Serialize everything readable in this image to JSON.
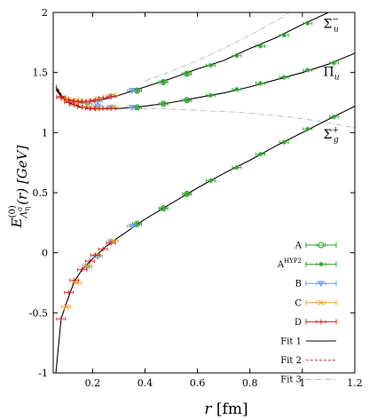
{
  "chart_data": {
    "type": "scatter",
    "xlabel_main": "r",
    "xlabel_unit": " [fm]",
    "xlim": [
      0.05,
      1.2
    ],
    "ylim": [
      -1,
      2
    ],
    "xticks": [
      {
        "v": 0.2,
        "t": "0.2"
      },
      {
        "v": 0.4,
        "t": "0.4"
      },
      {
        "v": 0.6,
        "t": "0.6"
      },
      {
        "v": 0.8,
        "t": "0.8"
      },
      {
        "v": 1.0,
        "t": "1"
      },
      {
        "v": 1.2,
        "t": "1.2"
      }
    ],
    "yticks": [
      {
        "v": -1,
        "t": "-1"
      },
      {
        "v": -0.5,
        "t": "-0.5"
      },
      {
        "v": 0,
        "t": "0"
      },
      {
        "v": 0.5,
        "t": "0.5"
      },
      {
        "v": 1,
        "t": "1"
      },
      {
        "v": 1.5,
        "t": "1.5"
      },
      {
        "v": 2,
        "t": "2"
      }
    ],
    "ylabel": {
      "E": "E",
      "sup": "(0)",
      "sub": "Λ",
      "subsup": "σ",
      "subsub": "η",
      "arg": "(r) [GeV]"
    },
    "series_labels": [
      {
        "main": "Σ",
        "sub": "u",
        "sup": "−",
        "x": 1.08,
        "y": 1.87
      },
      {
        "main": "Π",
        "sub": "u",
        "sup": "",
        "x": 1.08,
        "y": 1.47
      },
      {
        "main": "Σ",
        "sub": "g",
        "sup": "+",
        "x": 1.08,
        "y": 0.95
      }
    ],
    "legend": [
      {
        "label": "A",
        "sup": "",
        "kind": "circle",
        "color": "#2ca02c"
      },
      {
        "label": "A",
        "sup": "HYP2",
        "kind": "asterisk",
        "color": "#2ca02c"
      },
      {
        "label": "B",
        "sup": "",
        "kind": "triangle",
        "color": "#6b9bd8"
      },
      {
        "label": "C",
        "sup": "",
        "kind": "cross",
        "color": "#f0a020"
      },
      {
        "label": "D",
        "sup": "",
        "kind": "plus",
        "color": "#d62020"
      },
      {
        "label": "Fit 1",
        "sup": "",
        "kind": "solid",
        "color": "#000000"
      },
      {
        "label": "Fit 2",
        "sup": "",
        "kind": "dashed",
        "color": "#c04040"
      },
      {
        "label": "Fit 3",
        "sup": "",
        "kind": "dashdot",
        "color": "#b0b0b0"
      }
    ],
    "series": [
      {
        "name": "A",
        "kind": "circle",
        "color": "#2ca02c",
        "points": [
          [
            0.37,
            0.24
          ],
          [
            0.47,
            0.37
          ],
          [
            0.56,
            0.49
          ],
          [
            0.37,
            1.21
          ],
          [
            0.47,
            1.24
          ],
          [
            0.56,
            1.27
          ],
          [
            0.37,
            1.35
          ],
          [
            0.47,
            1.42
          ],
          [
            0.56,
            1.49
          ]
        ]
      },
      {
        "name": "AHYP2",
        "kind": "asterisk",
        "color": "#2ca02c",
        "points": [
          [
            0.37,
            0.24
          ],
          [
            0.47,
            0.37
          ],
          [
            0.56,
            0.49
          ],
          [
            0.65,
            0.6
          ],
          [
            0.75,
            0.71
          ],
          [
            0.84,
            0.82
          ],
          [
            0.93,
            0.92
          ],
          [
            1.02,
            1.03
          ],
          [
            1.12,
            1.13
          ],
          [
            0.37,
            1.21
          ],
          [
            0.47,
            1.24
          ],
          [
            0.56,
            1.27
          ],
          [
            0.65,
            1.31
          ],
          [
            0.75,
            1.36
          ],
          [
            0.84,
            1.41
          ],
          [
            0.93,
            1.46
          ],
          [
            1.02,
            1.52
          ],
          [
            1.12,
            1.58
          ],
          [
            0.37,
            1.35
          ],
          [
            0.47,
            1.42
          ],
          [
            0.56,
            1.49
          ],
          [
            0.65,
            1.56
          ],
          [
            0.75,
            1.64
          ],
          [
            0.84,
            1.72
          ],
          [
            0.93,
            1.81
          ],
          [
            1.02,
            1.91
          ]
        ]
      },
      {
        "name": "B",
        "kind": "triangle",
        "color": "#6b9bd8",
        "points": [
          [
            0.18,
            -0.12
          ],
          [
            0.22,
            -0.03
          ],
          [
            0.27,
            0.09
          ],
          [
            0.35,
            0.22
          ],
          [
            0.18,
            1.24
          ],
          [
            0.22,
            1.22
          ],
          [
            0.27,
            1.21
          ],
          [
            0.35,
            1.21
          ],
          [
            0.18,
            1.24
          ],
          [
            0.22,
            1.26
          ],
          [
            0.27,
            1.3
          ],
          [
            0.35,
            1.35
          ]
        ]
      },
      {
        "name": "C",
        "kind": "cross",
        "color": "#f0a020",
        "points": [
          [
            0.1,
            -0.45
          ],
          [
            0.14,
            -0.25
          ],
          [
            0.18,
            -0.11
          ],
          [
            0.22,
            -0.02
          ],
          [
            0.28,
            0.1
          ],
          [
            0.1,
            1.27
          ],
          [
            0.14,
            1.24
          ],
          [
            0.18,
            1.22
          ],
          [
            0.22,
            1.2
          ],
          [
            0.28,
            1.21
          ],
          [
            0.1,
            1.28
          ],
          [
            0.14,
            1.27
          ],
          [
            0.18,
            1.26
          ],
          [
            0.22,
            1.28
          ],
          [
            0.28,
            1.31
          ]
        ]
      },
      {
        "name": "D",
        "kind": "plus",
        "color": "#d62020",
        "points": [
          [
            0.08,
            -0.55
          ],
          [
            0.11,
            -0.33
          ],
          [
            0.13,
            -0.23
          ],
          [
            0.16,
            -0.14
          ],
          [
            0.19,
            -0.07
          ],
          [
            0.21,
            -0.02
          ],
          [
            0.24,
            0.03
          ],
          [
            0.27,
            0.08
          ],
          [
            0.08,
            1.29
          ],
          [
            0.11,
            1.25
          ],
          [
            0.13,
            1.23
          ],
          [
            0.16,
            1.21
          ],
          [
            0.19,
            1.2
          ],
          [
            0.21,
            1.2
          ],
          [
            0.24,
            1.2
          ],
          [
            0.27,
            1.2
          ],
          [
            0.08,
            1.3
          ],
          [
            0.11,
            1.27
          ],
          [
            0.13,
            1.26
          ],
          [
            0.16,
            1.26
          ],
          [
            0.19,
            1.26
          ],
          [
            0.21,
            1.27
          ],
          [
            0.24,
            1.29
          ],
          [
            0.27,
            1.3
          ]
        ]
      }
    ],
    "fits": {
      "fit1": {
        "color": "#000000",
        "curves": [
          [
            [
              0.06,
              -1.0
            ],
            [
              0.08,
              -0.55
            ],
            [
              0.1,
              -0.42
            ],
            [
              0.13,
              -0.24
            ],
            [
              0.16,
              -0.14
            ],
            [
              0.2,
              -0.05
            ],
            [
              0.25,
              0.05
            ],
            [
              0.3,
              0.13
            ],
            [
              0.4,
              0.28
            ],
            [
              0.5,
              0.41
            ],
            [
              0.6,
              0.54
            ],
            [
              0.7,
              0.66
            ],
            [
              0.8,
              0.77
            ],
            [
              0.9,
              0.89
            ],
            [
              1.0,
              1.0
            ],
            [
              1.1,
              1.11
            ],
            [
              1.2,
              1.22
            ]
          ],
          [
            [
              0.06,
              1.36
            ],
            [
              0.08,
              1.3
            ],
            [
              0.1,
              1.26
            ],
            [
              0.13,
              1.23
            ],
            [
              0.16,
              1.21
            ],
            [
              0.2,
              1.2
            ],
            [
              0.25,
              1.2
            ],
            [
              0.3,
              1.2
            ],
            [
              0.4,
              1.22
            ],
            [
              0.5,
              1.25
            ],
            [
              0.6,
              1.29
            ],
            [
              0.7,
              1.33
            ],
            [
              0.8,
              1.38
            ],
            [
              0.9,
              1.44
            ],
            [
              1.0,
              1.5
            ],
            [
              1.1,
              1.57
            ],
            [
              1.2,
              1.66
            ]
          ],
          [
            [
              0.06,
              1.38
            ],
            [
              0.08,
              1.31
            ],
            [
              0.1,
              1.28
            ],
            [
              0.13,
              1.26
            ],
            [
              0.16,
              1.25
            ],
            [
              0.2,
              1.26
            ],
            [
              0.25,
              1.28
            ],
            [
              0.3,
              1.31
            ],
            [
              0.4,
              1.38
            ],
            [
              0.5,
              1.45
            ],
            [
              0.6,
              1.53
            ],
            [
              0.7,
              1.6
            ],
            [
              0.8,
              1.7
            ],
            [
              0.9,
              1.79
            ],
            [
              1.0,
              1.9
            ],
            [
              1.05,
              1.95
            ],
            [
              1.1,
              2.0
            ]
          ]
        ]
      },
      "fit2": {
        "color": "#c04040",
        "curves": [
          [
            [
              0.06,
              1.4
            ],
            [
              0.08,
              1.32
            ],
            [
              0.1,
              1.28
            ],
            [
              0.13,
              1.26
            ],
            [
              0.16,
              1.25
            ],
            [
              0.2,
              1.26
            ]
          ],
          [
            [
              0.06,
              1.36
            ],
            [
              0.08,
              1.3
            ],
            [
              0.1,
              1.26
            ],
            [
              0.13,
              1.23
            ],
            [
              0.16,
              1.21
            ]
          ]
        ]
      },
      "fit3": {
        "color": "#b0b0b0",
        "curves": [
          [
            [
              0.4,
              1.43
            ],
            [
              0.5,
              1.51
            ],
            [
              0.6,
              1.6
            ],
            [
              0.7,
              1.7
            ],
            [
              0.8,
              1.81
            ],
            [
              0.9,
              1.93
            ],
            [
              0.95,
              2.0
            ]
          ],
          [
            [
              0.35,
              1.2
            ],
            [
              0.45,
              1.2
            ],
            [
              0.55,
              1.19
            ],
            [
              0.65,
              1.18
            ],
            [
              0.75,
              1.17
            ],
            [
              0.85,
              1.15
            ],
            [
              0.95,
              1.13
            ],
            [
              1.05,
              1.1
            ],
            [
              1.15,
              1.06
            ],
            [
              1.2,
              1.04
            ]
          ]
        ]
      }
    }
  }
}
